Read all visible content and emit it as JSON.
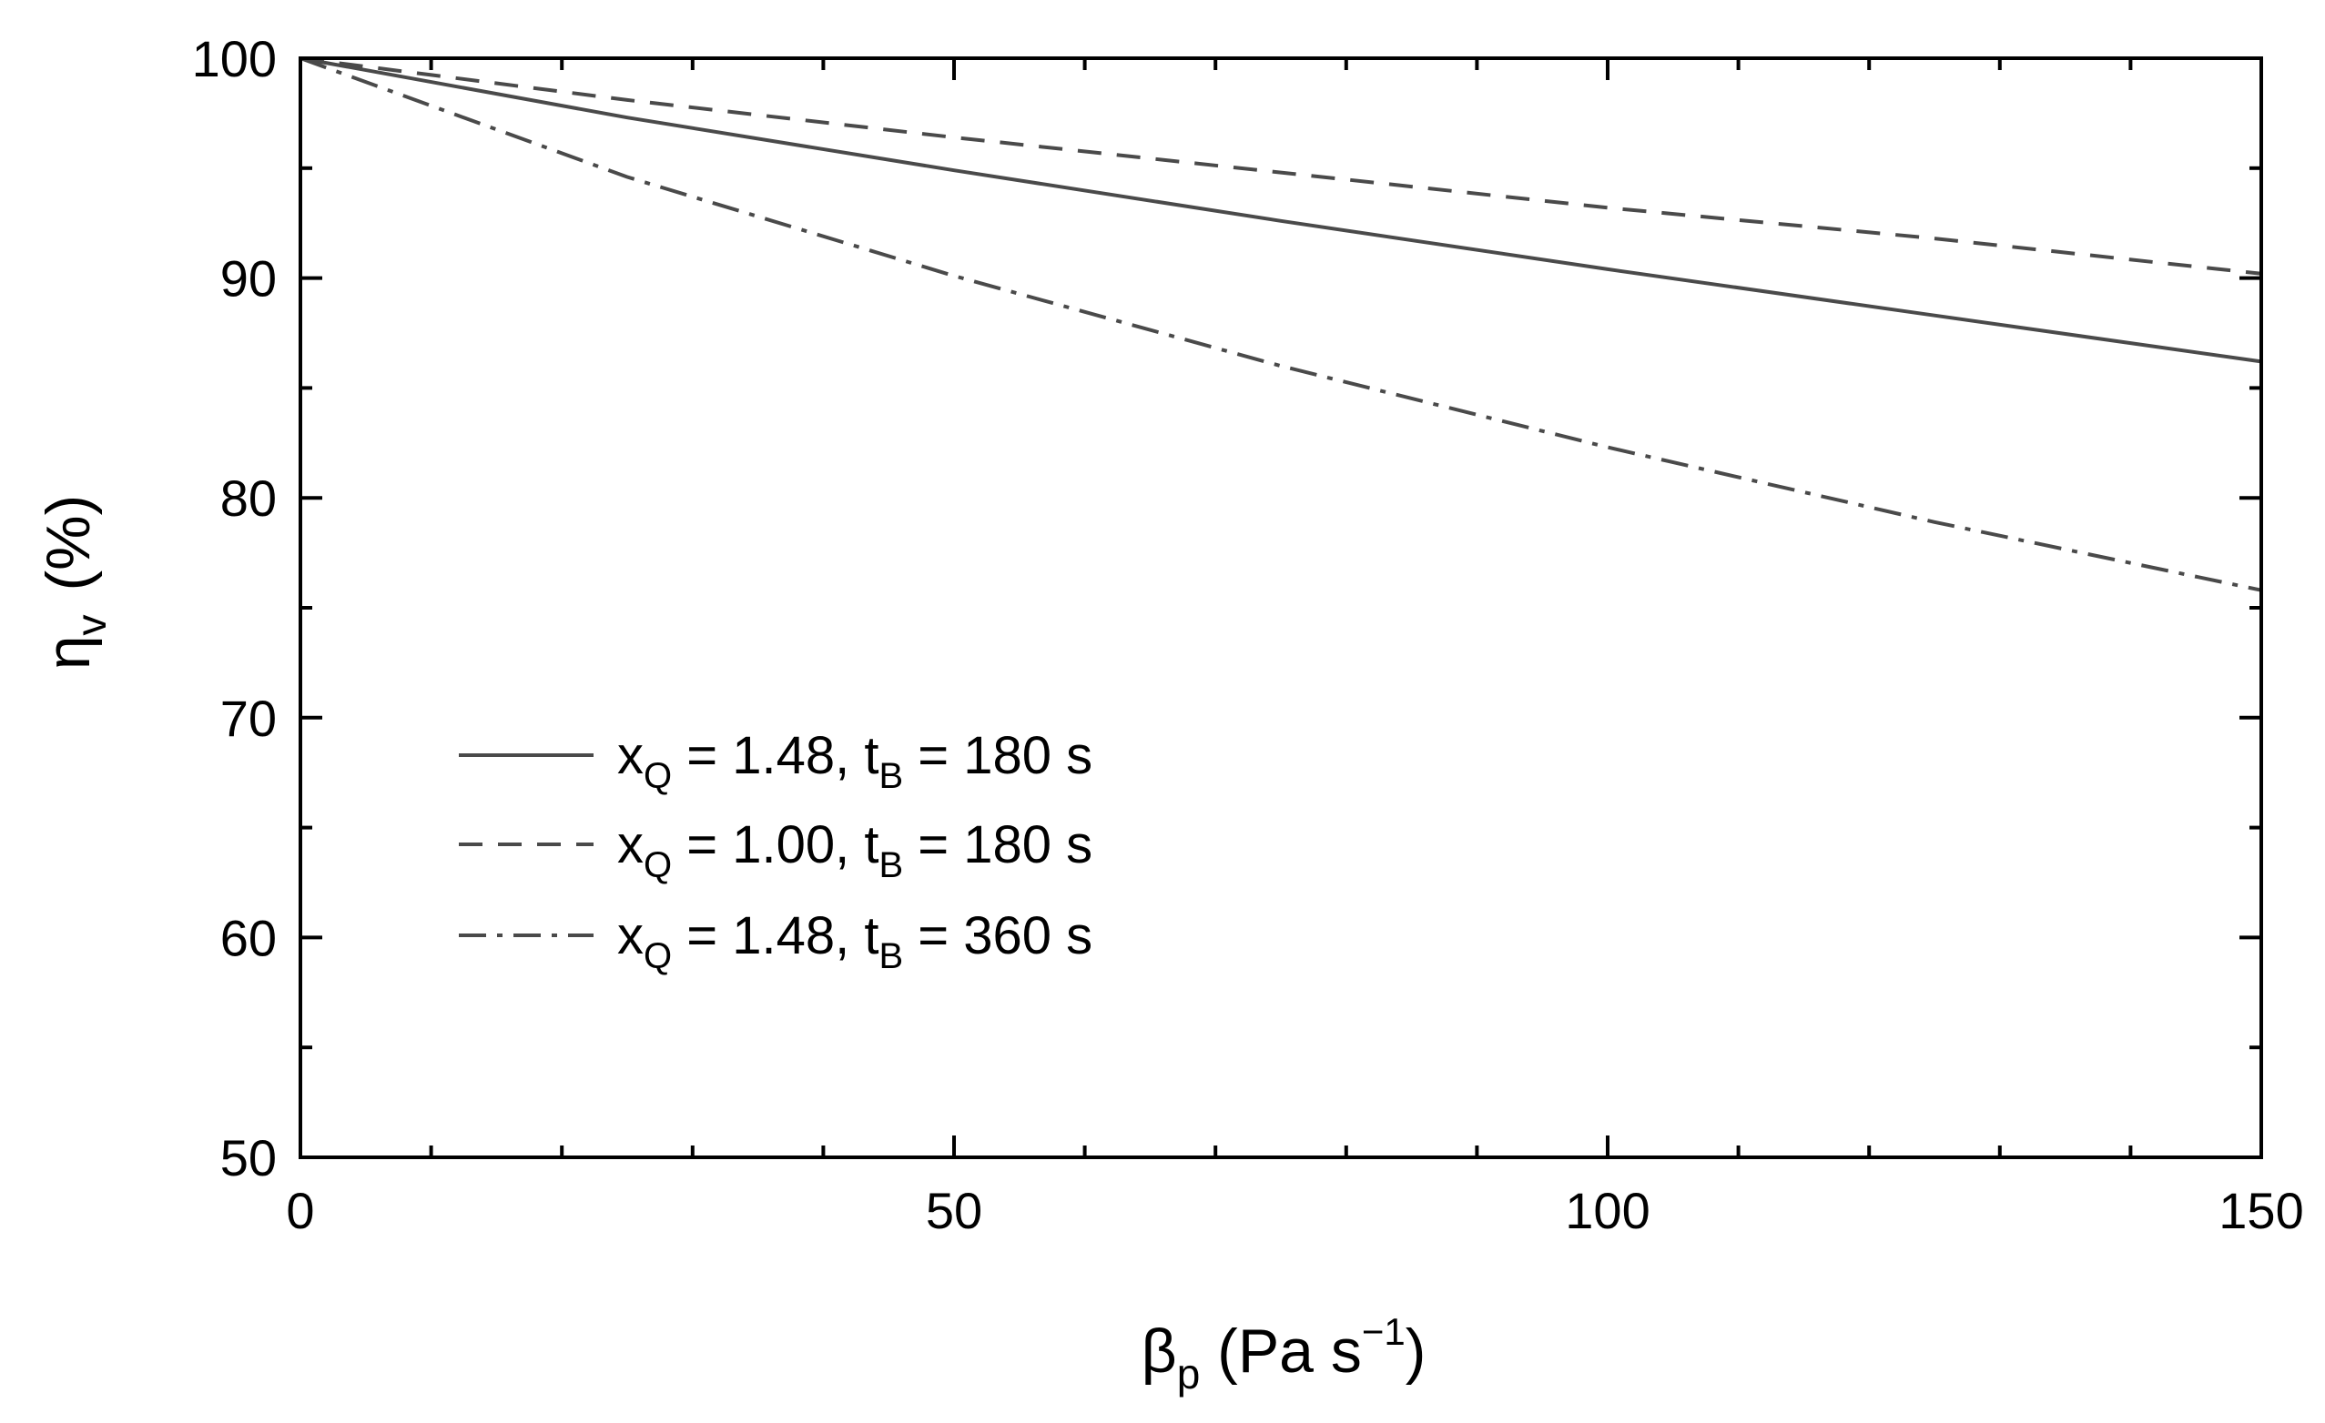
{
  "chart_data": {
    "type": "line",
    "xlabel": {
      "base": "β",
      "sub": "p",
      "unit_pre": " (Pa s",
      "sup": "−1",
      "unit_post": ")"
    },
    "ylabel": {
      "base": "η",
      "sub": "v",
      "unit": "(%)"
    },
    "xlim": [
      0,
      150
    ],
    "ylim": [
      50,
      100
    ],
    "x_major_ticks": [
      0,
      50,
      100,
      150
    ],
    "y_major_ticks": [
      50,
      60,
      70,
      80,
      90,
      100
    ],
    "x_tick_labels": [
      "0",
      "50",
      "100",
      "150"
    ],
    "y_tick_labels": [
      "50",
      "60",
      "70",
      "80",
      "90",
      "100"
    ],
    "grid": false,
    "legend_position": "lower-left",
    "line_color": "#4a4a4a",
    "series": [
      {
        "name": "x_Q = 1.48, t_B = 180 s",
        "legend": {
          "a": "x",
          "a_sub": "Q",
          "b": " = 1.48, t",
          "b_sub": "B",
          "c": " = 180 s"
        },
        "style": "solid",
        "x": [
          0,
          25,
          50,
          75,
          100,
          125,
          150
        ],
        "y": [
          100,
          97.3,
          94.9,
          92.6,
          90.4,
          88.3,
          86.2
        ]
      },
      {
        "name": "x_Q = 1.00, t_B = 180 s",
        "legend": {
          "a": "x",
          "a_sub": "Q",
          "b": " = 1.00, t",
          "b_sub": "B",
          "c": " = 180 s"
        },
        "style": "dashed",
        "x": [
          0,
          25,
          50,
          75,
          100,
          125,
          150
        ],
        "y": [
          100,
          98.1,
          96.4,
          94.8,
          93.2,
          91.8,
          90.2
        ]
      },
      {
        "name": "x_Q = 1.48, t_B = 360 s",
        "legend": {
          "a": "x",
          "a_sub": "Q",
          "b": " = 1.48, t",
          "b_sub": "B",
          "c": " = 360 s"
        },
        "style": "dashdot",
        "x": [
          0,
          25,
          50,
          75,
          100,
          125,
          150
        ],
        "y": [
          100,
          94.6,
          90.1,
          86.0,
          82.3,
          78.9,
          75.8
        ]
      }
    ]
  }
}
